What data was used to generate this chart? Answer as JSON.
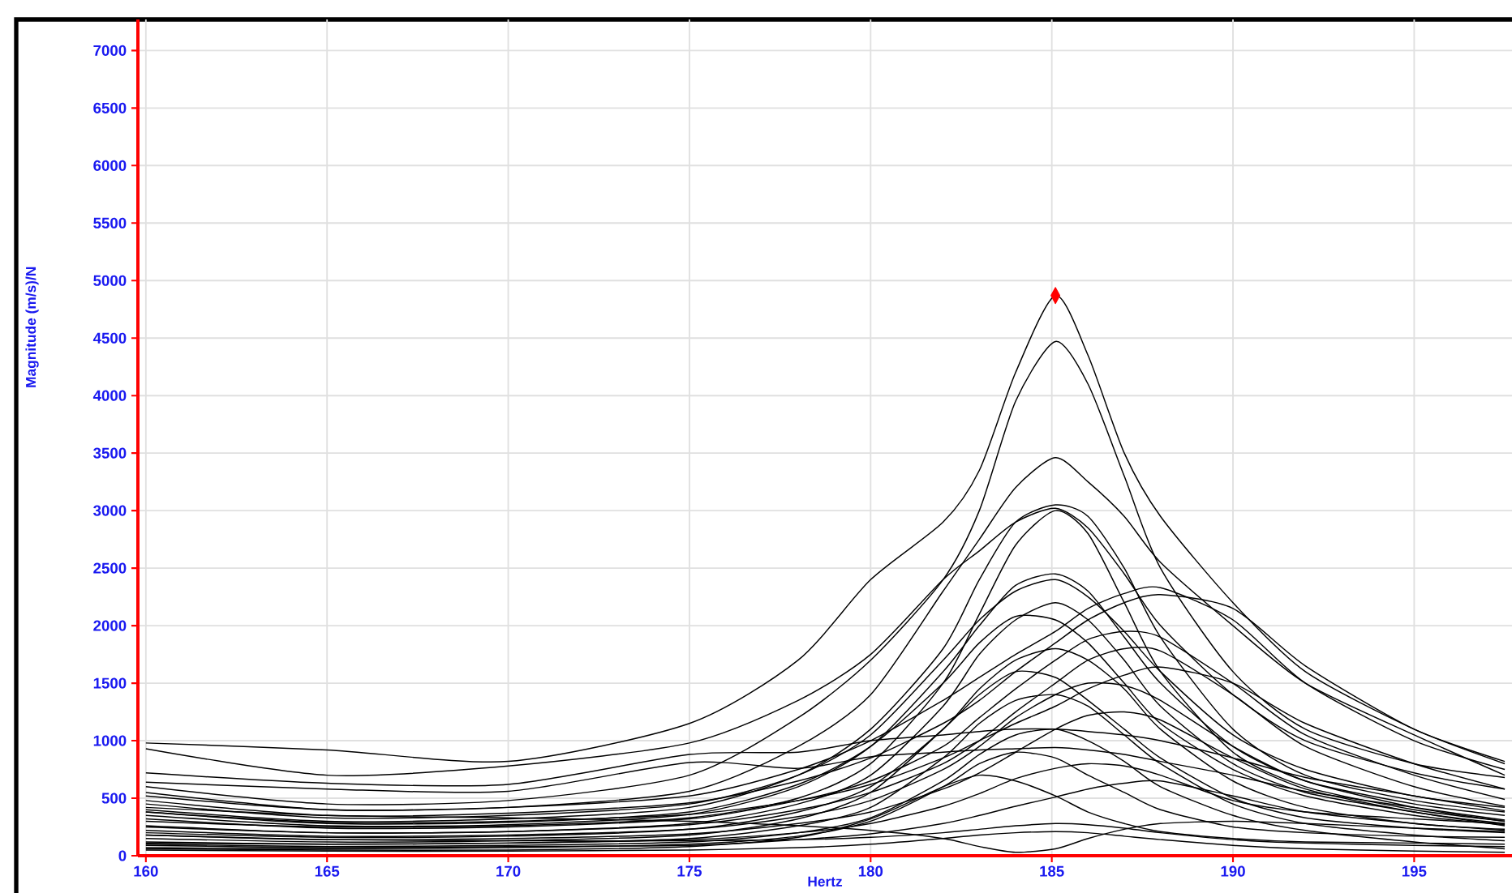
{
  "chart_data": {
    "type": "line",
    "xlabel": "Hertz",
    "ylabel": "Magnitude (m/s)/N",
    "x": [
      160,
      165,
      170,
      175,
      178,
      180,
      182,
      183,
      184,
      185.1,
      186,
      187,
      188,
      190,
      192,
      195,
      197.5
    ],
    "xlim": [
      159.78,
      197.7
    ],
    "ylim": [
      0,
      7270
    ],
    "xticks": [
      160,
      165,
      170,
      175,
      180,
      185,
      190,
      195
    ],
    "yticks": [
      0,
      500,
      1000,
      1500,
      2000,
      2500,
      3000,
      3500,
      4000,
      4500,
      5000,
      5500,
      6000,
      6500,
      7000
    ],
    "grid": true,
    "marker": "none",
    "line_style": "solid",
    "series": [
      {
        "color": "#000000",
        "values": [
          980,
          920,
          820,
          1150,
          1700,
          2400,
          2900,
          3350,
          4200,
          4870,
          4350,
          3500,
          2950,
          2200,
          1600,
          1100,
          800
        ]
      },
      {
        "color": "#000000",
        "values": [
          600,
          450,
          480,
          700,
          1200,
          1700,
          2400,
          3000,
          3950,
          4470,
          4100,
          3300,
          2500,
          1600,
          1100,
          800,
          680
        ]
      },
      {
        "color": "#000000",
        "values": [
          520,
          400,
          420,
          560,
          950,
          1400,
          2300,
          2750,
          3200,
          3460,
          3250,
          2950,
          2550,
          2000,
          1500,
          1050,
          700
        ]
      },
      {
        "color": "#000000",
        "values": [
          930,
          700,
          780,
          980,
          1350,
          1750,
          2400,
          2650,
          2900,
          3020,
          2850,
          2450,
          2000,
          1400,
          1000,
          720,
          580
        ]
      },
      {
        "color": "#000000",
        "values": [
          300,
          250,
          260,
          330,
          500,
          800,
          1500,
          2100,
          2700,
          3000,
          2800,
          2200,
          1600,
          900,
          600,
          400,
          300
        ]
      },
      {
        "color": "#000000",
        "values": [
          400,
          300,
          320,
          420,
          700,
          1100,
          1800,
          2400,
          2900,
          3050,
          2950,
          2500,
          1900,
          1100,
          700,
          480,
          380
        ]
      },
      {
        "color": "#000000",
        "values": [
          350,
          260,
          270,
          360,
          600,
          950,
          1600,
          2000,
          2350,
          2450,
          2300,
          1900,
          1500,
          950,
          650,
          450,
          350
        ]
      },
      {
        "color": "#000000",
        "values": [
          450,
          330,
          350,
          450,
          700,
          1050,
          1700,
          2050,
          2300,
          2400,
          2250,
          1950,
          1600,
          1050,
          750,
          520,
          420
        ]
      },
      {
        "color": "#000000",
        "values": [
          550,
          400,
          420,
          520,
          750,
          1000,
          1350,
          1550,
          1750,
          1950,
          2150,
          2280,
          2330,
          2050,
          1500,
          1000,
          750
        ]
      },
      {
        "color": "#000000",
        "values": [
          480,
          350,
          370,
          460,
          650,
          850,
          1150,
          1350,
          1600,
          1850,
          2050,
          2200,
          2270,
          2150,
          1650,
          1100,
          820
        ]
      },
      {
        "color": "#000000",
        "values": [
          250,
          200,
          210,
          280,
          450,
          700,
          1300,
          1750,
          2050,
          2200,
          2050,
          1700,
          1300,
          800,
          550,
          380,
          260
        ]
      },
      {
        "color": "#000000",
        "values": [
          380,
          280,
          290,
          380,
          620,
          950,
          1500,
          1850,
          2080,
          2050,
          1850,
          1500,
          1150,
          750,
          520,
          350,
          270
        ]
      },
      {
        "color": "#000000",
        "values": [
          320,
          240,
          250,
          320,
          480,
          650,
          950,
          1200,
          1450,
          1700,
          1880,
          1950,
          1900,
          1500,
          1050,
          700,
          490
        ]
      },
      {
        "color": "#000000",
        "values": [
          200,
          160,
          170,
          230,
          380,
          600,
          1100,
          1450,
          1700,
          1800,
          1700,
          1450,
          1100,
          650,
          420,
          280,
          230
        ]
      },
      {
        "color": "#000000",
        "values": [
          260,
          200,
          210,
          270,
          400,
          550,
          800,
          1000,
          1250,
          1500,
          1700,
          1800,
          1780,
          1400,
          950,
          600,
          430
        ]
      },
      {
        "color": "#000000",
        "values": [
          150,
          120,
          130,
          180,
          320,
          550,
          1100,
          1400,
          1600,
          1550,
          1350,
          1100,
          850,
          500,
          330,
          240,
          200
        ]
      },
      {
        "color": "#000000",
        "values": [
          220,
          170,
          180,
          230,
          340,
          480,
          750,
          950,
          1200,
          1400,
          1500,
          1480,
          1350,
          950,
          650,
          420,
          300
        ]
      },
      {
        "color": "#000000",
        "values": [
          120,
          100,
          110,
          150,
          260,
          420,
          850,
          1150,
          1350,
          1400,
          1300,
          1050,
          800,
          450,
          280,
          180,
          130
        ]
      },
      {
        "color": "#000000",
        "values": [
          180,
          140,
          150,
          190,
          280,
          380,
          580,
          720,
          900,
          1100,
          1220,
          1250,
          1180,
          850,
          580,
          380,
          280
        ]
      },
      {
        "color": "#000000",
        "values": [
          100,
          80,
          90,
          120,
          200,
          330,
          650,
          880,
          1050,
          1100,
          1000,
          820,
          600,
          350,
          220,
          120,
          60
        ]
      },
      {
        "color": "#000000",
        "values": [
          720,
          630,
          620,
          880,
          900,
          1000,
          1050,
          1080,
          1100,
          1100,
          1080,
          1050,
          1000,
          850,
          680,
          520,
          390
        ]
      },
      {
        "color": "#000000",
        "values": [
          70,
          60,
          70,
          100,
          170,
          300,
          600,
          800,
          900,
          850,
          700,
          550,
          400,
          250,
          200,
          170,
          160
        ]
      },
      {
        "color": "#000000",
        "values": [
          110,
          100,
          110,
          140,
          200,
          280,
          430,
          540,
          670,
          760,
          800,
          780,
          700,
          480,
          380,
          320,
          280
        ]
      },
      {
        "color": "#000000",
        "values": [
          420,
          350,
          330,
          300,
          260,
          220,
          150,
          80,
          30,
          60,
          150,
          230,
          280,
          300,
          280,
          240,
          210
        ]
      },
      {
        "color": "#000000",
        "values": [
          50,
          40,
          40,
          50,
          70,
          100,
          150,
          180,
          200,
          210,
          200,
          170,
          140,
          90,
          60,
          40,
          30
        ]
      },
      {
        "color": "#000000",
        "values": [
          90,
          70,
          80,
          90,
          140,
          190,
          280,
          350,
          430,
          510,
          580,
          630,
          650,
          520,
          380,
          280,
          220
        ]
      },
      {
        "color": "#000000",
        "values": [
          60,
          50,
          50,
          80,
          160,
          320,
          600,
          700,
          650,
          520,
          380,
          280,
          210,
          150,
          120,
          110,
          100
        ]
      },
      {
        "color": "#000000",
        "values": [
          640,
          580,
          560,
          810,
          760,
          860,
          900,
          920,
          930,
          940,
          920,
          880,
          820,
          700,
          560,
          420,
          310
        ]
      },
      {
        "color": "#000000",
        "values": [
          380,
          290,
          300,
          360,
          480,
          620,
          850,
          1000,
          1150,
          1300,
          1450,
          1570,
          1640,
          1500,
          1150,
          800,
          580
        ]
      },
      {
        "color": "#000000",
        "values": [
          180,
          140,
          130,
          130,
          140,
          160,
          200,
          230,
          260,
          280,
          270,
          240,
          200,
          140,
          110,
          90,
          80
        ]
      },
      {
        "type": "scatter",
        "marker": "diamond",
        "color": "#ff0000",
        "x": [
          185.1
        ],
        "values": [
          4870
        ]
      }
    ]
  }
}
